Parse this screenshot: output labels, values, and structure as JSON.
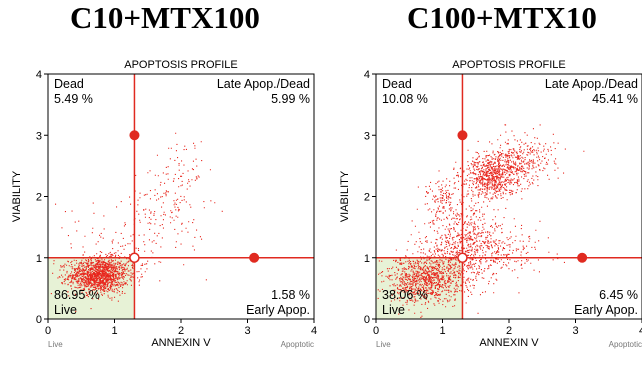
{
  "titles": [
    "C10+MTX100",
    "C100+MTX10"
  ],
  "chart_data": [
    {
      "type": "scatter",
      "panel_title": "APOPTOSIS PROFILE",
      "xlabel": "ANNEXIN V",
      "ylabel": "VIABILITY",
      "x_left_note": "Live",
      "x_right_note": "Apoptotic",
      "xlim": [
        0,
        4
      ],
      "ylim": [
        0,
        4
      ],
      "xticks": [
        "0",
        "1",
        "2",
        "3",
        "4"
      ],
      "yticks": [
        "0",
        "1",
        "2",
        "3",
        "4"
      ],
      "gates": {
        "x": 1.3,
        "y": 1.0
      },
      "quadrants": {
        "top_left": {
          "name": "Dead",
          "value": "5.49 %"
        },
        "top_right": {
          "name": "Late Apop./Dead",
          "value": "5.99 %"
        },
        "bottom_left": {
          "name": "Live",
          "value": "86.95 %"
        },
        "bottom_right": {
          "name": "Early Apop.",
          "value": "1.58 %"
        }
      },
      "clusters": [
        {
          "cx": 0.75,
          "cy": 0.72,
          "sx": 0.22,
          "sy": 0.14,
          "n": 1300
        },
        {
          "cx": 1.1,
          "cy": 0.95,
          "sx": 0.25,
          "sy": 0.25,
          "n": 150
        },
        {
          "cx": 1.75,
          "cy": 1.8,
          "sx": 0.3,
          "sy": 0.4,
          "n": 160
        },
        {
          "cx": 2.05,
          "cy": 2.45,
          "sx": 0.15,
          "sy": 0.25,
          "n": 45
        },
        {
          "cx": 0.35,
          "cy": 1.4,
          "sx": 0.25,
          "sy": 0.3,
          "n": 25
        }
      ],
      "colors": {
        "points": "#e8261d",
        "gate": "#e02a20",
        "live_fill": "#e7f2d6"
      }
    },
    {
      "type": "scatter",
      "panel_title": "APOPTOSIS PROFILE",
      "xlabel": "ANNEXIN V",
      "ylabel": "VIABILITY",
      "x_left_note": "Live",
      "x_right_note": "Apoptotic",
      "xlim": [
        0,
        4
      ],
      "ylim": [
        0,
        4
      ],
      "xticks": [
        "0",
        "1",
        "2",
        "3",
        "4"
      ],
      "yticks": [
        "0",
        "1",
        "2",
        "3",
        "4"
      ],
      "gates": {
        "x": 1.3,
        "y": 1.0
      },
      "quadrants": {
        "top_left": {
          "name": "Dead",
          "value": "10.08 %"
        },
        "top_right": {
          "name": "Late Apop./Dead",
          "value": "45.41 %"
        },
        "bottom_left": {
          "name": "Live",
          "value": "38.06 %"
        },
        "bottom_right": {
          "name": "Early Apop.",
          "value": "6.45 %"
        }
      },
      "clusters": [
        {
          "cx": 0.7,
          "cy": 0.65,
          "sx": 0.3,
          "sy": 0.2,
          "n": 900
        },
        {
          "cx": 1.3,
          "cy": 1.2,
          "sx": 0.3,
          "sy": 0.35,
          "n": 650
        },
        {
          "cx": 1.75,
          "cy": 2.35,
          "sx": 0.22,
          "sy": 0.18,
          "n": 700
        },
        {
          "cx": 2.2,
          "cy": 2.6,
          "sx": 0.25,
          "sy": 0.2,
          "n": 300
        },
        {
          "cx": 1.0,
          "cy": 2.0,
          "sx": 0.18,
          "sy": 0.18,
          "n": 120
        },
        {
          "cx": 1.9,
          "cy": 1.1,
          "sx": 0.35,
          "sy": 0.2,
          "n": 200
        }
      ],
      "colors": {
        "points": "#e8261d",
        "gate": "#e02a20",
        "live_fill": "#e7f2d6"
      }
    }
  ]
}
